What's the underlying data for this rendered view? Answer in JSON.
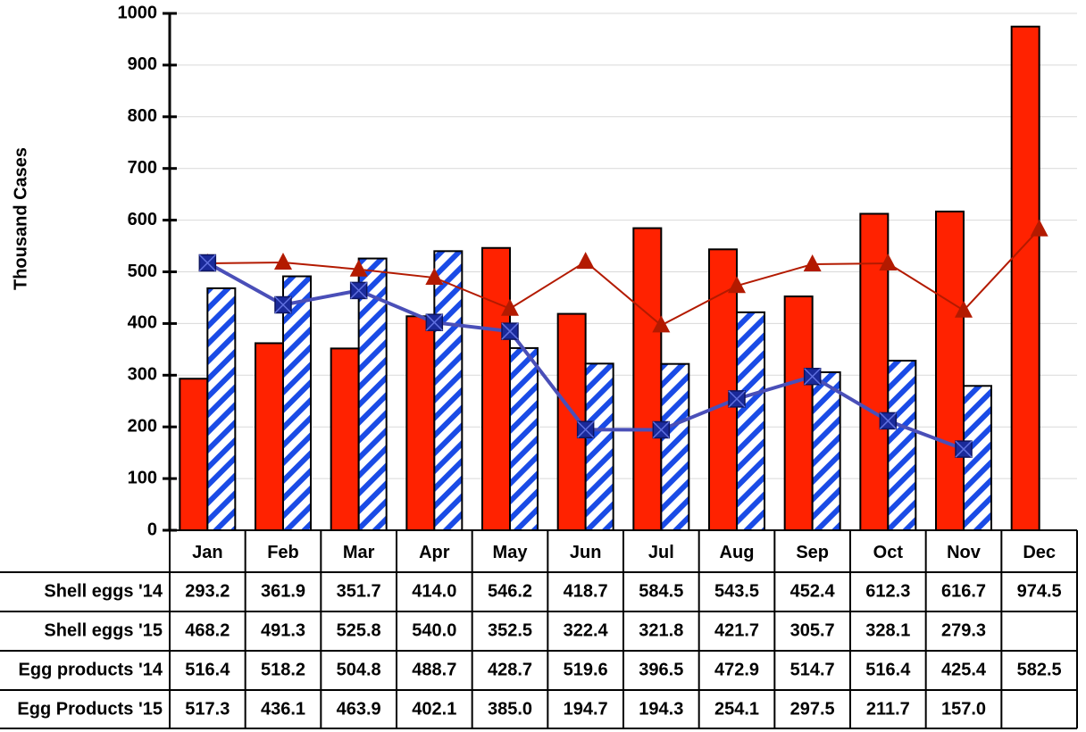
{
  "chart_data": {
    "type": "bar",
    "y_label": "Thousand Cases",
    "categories": [
      "Jan",
      "Feb",
      "Mar",
      "Apr",
      "May",
      "Jun",
      "Jul",
      "Aug",
      "Sep",
      "Oct",
      "Nov",
      "Dec"
    ],
    "ylim": [
      0,
      1000
    ],
    "yticks": [
      0,
      100,
      200,
      300,
      400,
      500,
      600,
      700,
      800,
      900,
      1000
    ],
    "grid": true,
    "series": [
      {
        "name": "Shell eggs '14",
        "type": "bar",
        "color": "#ff2200",
        "values": [
          293.2,
          361.9,
          351.7,
          414.0,
          546.2,
          418.7,
          584.5,
          543.5,
          452.4,
          612.3,
          616.7,
          974.5
        ],
        "value_labels": [
          "293.2",
          "361.9",
          "351.7",
          "414.0",
          "546.2",
          "418.7",
          "584.5",
          "543.5",
          "452.4",
          "612.3",
          "616.7",
          "974.5"
        ]
      },
      {
        "name": "Shell eggs '15",
        "type": "bar",
        "pattern": "hatch",
        "color": "#1a4be6",
        "values": [
          468.2,
          491.3,
          525.8,
          540.0,
          352.5,
          322.4,
          321.8,
          421.7,
          305.7,
          328.1,
          279.3,
          null
        ],
        "value_labels": [
          "468.2",
          "491.3",
          "525.8",
          "540.0",
          "352.5",
          "322.4",
          "321.8",
          "421.7",
          "305.7",
          "328.1",
          "279.3",
          null
        ]
      },
      {
        "name": "Egg products '14",
        "type": "line",
        "marker": "triangle",
        "color": "#b31a00",
        "values": [
          516.4,
          518.2,
          504.8,
          488.7,
          428.7,
          519.6,
          396.5,
          472.9,
          514.7,
          516.4,
          425.4,
          582.5
        ],
        "value_labels": [
          "516.4",
          "518.2",
          "504.8",
          "488.7",
          "428.7",
          "519.6",
          "396.5",
          "472.9",
          "514.7",
          "516.4",
          "425.4",
          "582.5"
        ]
      },
      {
        "name": "Egg Products '15",
        "type": "line",
        "marker": "square-x",
        "color": "#4a4fb8",
        "values": [
          517.3,
          436.1,
          463.9,
          402.1,
          385.0,
          194.7,
          194.3,
          254.1,
          297.5,
          211.7,
          157.0,
          null
        ],
        "value_labels": [
          "517.3",
          "436.1",
          "463.9",
          "402.1",
          "385.0",
          "194.7",
          "194.3",
          "254.1",
          "297.5",
          "211.7",
          "157.0",
          null
        ]
      }
    ]
  }
}
